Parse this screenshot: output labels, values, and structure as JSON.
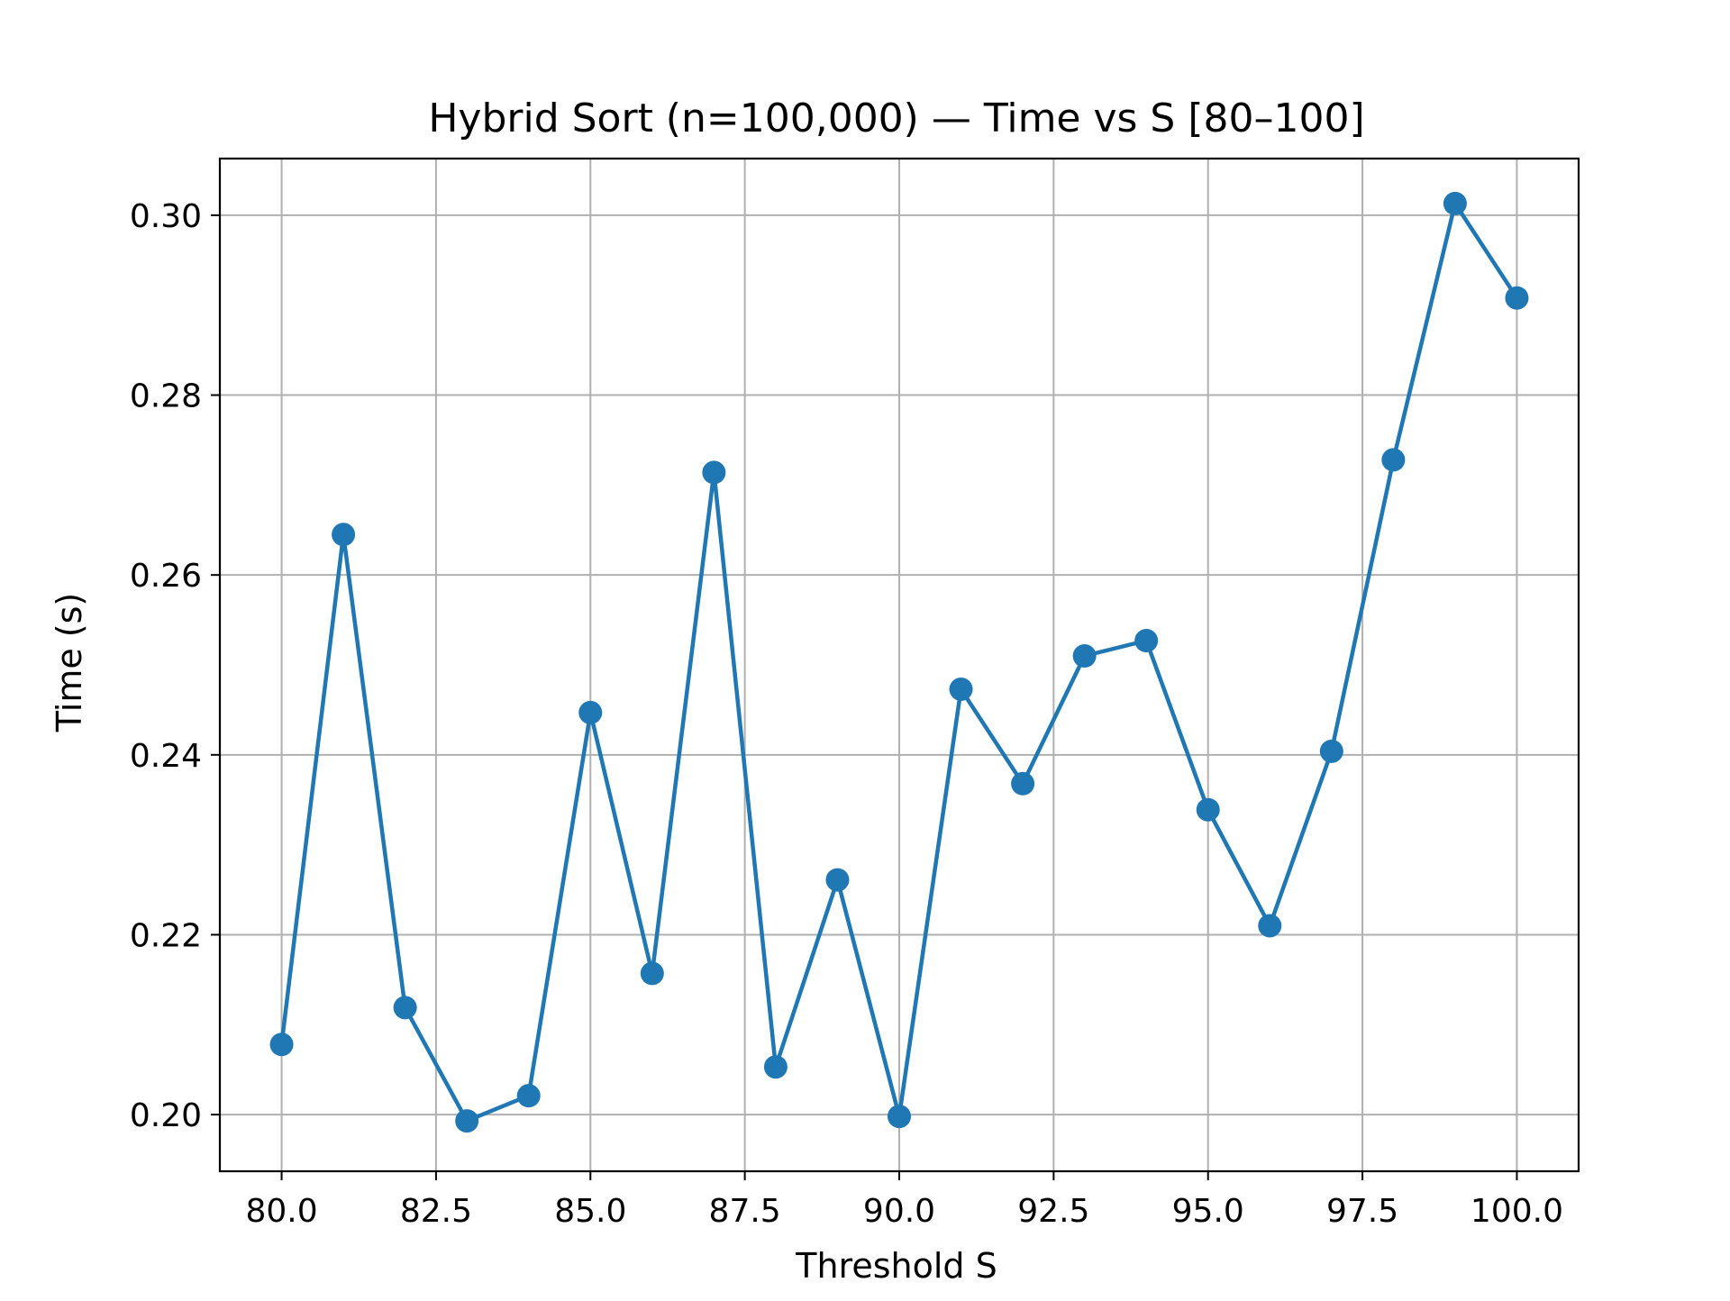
{
  "chart_data": {
    "type": "line",
    "title": "Hybrid Sort (n=100,000) — Time vs S [80–100]",
    "xlabel": "Threshold S",
    "ylabel": "Time (s)",
    "xlim": [
      79,
      101
    ],
    "ylim": [
      0.1937,
      0.3063
    ],
    "xticks": [
      80.0,
      82.5,
      85.0,
      87.5,
      90.0,
      92.5,
      95.0,
      97.5,
      100.0
    ],
    "xtick_labels": [
      "80.0",
      "82.5",
      "85.0",
      "87.5",
      "90.0",
      "92.5",
      "95.0",
      "97.5",
      "100.0"
    ],
    "yticks": [
      0.2,
      0.22,
      0.24,
      0.26,
      0.28,
      0.3
    ],
    "ytick_labels": [
      "0.20",
      "0.22",
      "0.24",
      "0.26",
      "0.28",
      "0.30"
    ],
    "grid": true,
    "color": "#1f77b4",
    "marker": "circle",
    "x": [
      80,
      81,
      82,
      83,
      84,
      85,
      86,
      87,
      88,
      89,
      90,
      91,
      92,
      93,
      94,
      95,
      96,
      97,
      98,
      99,
      100
    ],
    "y": [
      0.2078,
      0.2645,
      0.2119,
      0.1993,
      0.2021,
      0.2447,
      0.2157,
      0.2714,
      0.2053,
      0.2261,
      0.1998,
      0.2473,
      0.2368,
      0.251,
      0.2527,
      0.2339,
      0.221,
      0.2404,
      0.2728,
      0.3013,
      0.2908
    ]
  }
}
